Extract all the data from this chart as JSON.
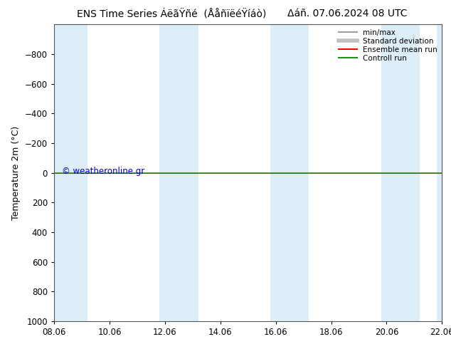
{
  "title_left": "ENS Time Series ÁëãŸñé  (ÅåñïëéŸíáò)",
  "title_right": "Δáñ. 07.06.2024 08 UTC",
  "ylabel": "Temperature 2m (°C)",
  "ylim_bottom": 1000,
  "ylim_top": -1000,
  "yticks": [
    -800,
    -600,
    -400,
    -200,
    0,
    200,
    400,
    600,
    800,
    1000
  ],
  "xtick_labels": [
    "08.06",
    "10.06",
    "12.06",
    "14.06",
    "16.06",
    "18.06",
    "20.06",
    "22.06"
  ],
  "xtick_positions": [
    0,
    2,
    4,
    6,
    8,
    10,
    12,
    14
  ],
  "x_start": 0,
  "x_end": 14,
  "shaded_bands": [
    [
      0,
      1.2
    ],
    [
      3.8,
      5.2
    ],
    [
      7.8,
      9.2
    ],
    [
      11.8,
      13.2
    ],
    [
      13.8,
      14
    ]
  ],
  "band_color": "#ddeef8",
  "control_run_y": 0,
  "control_run_color": "#228B22",
  "ensemble_mean_color": "#FF0000",
  "minmax_color": "#A0A0A0",
  "std_color": "#C0C0C0",
  "watermark": "© weatheronline.gr",
  "watermark_color": "#0000CD",
  "background_color": "#FFFFFF",
  "plot_bg_color": "#FFFFFF",
  "legend_labels": [
    "min/max",
    "Standard deviation",
    "Ensemble mean run",
    "Controll run"
  ],
  "legend_colors": [
    "#A0A0A0",
    "#C0C0C0",
    "#FF0000",
    "#228B22"
  ],
  "title_fontsize": 10,
  "axis_fontsize": 9,
  "tick_fontsize": 8.5
}
